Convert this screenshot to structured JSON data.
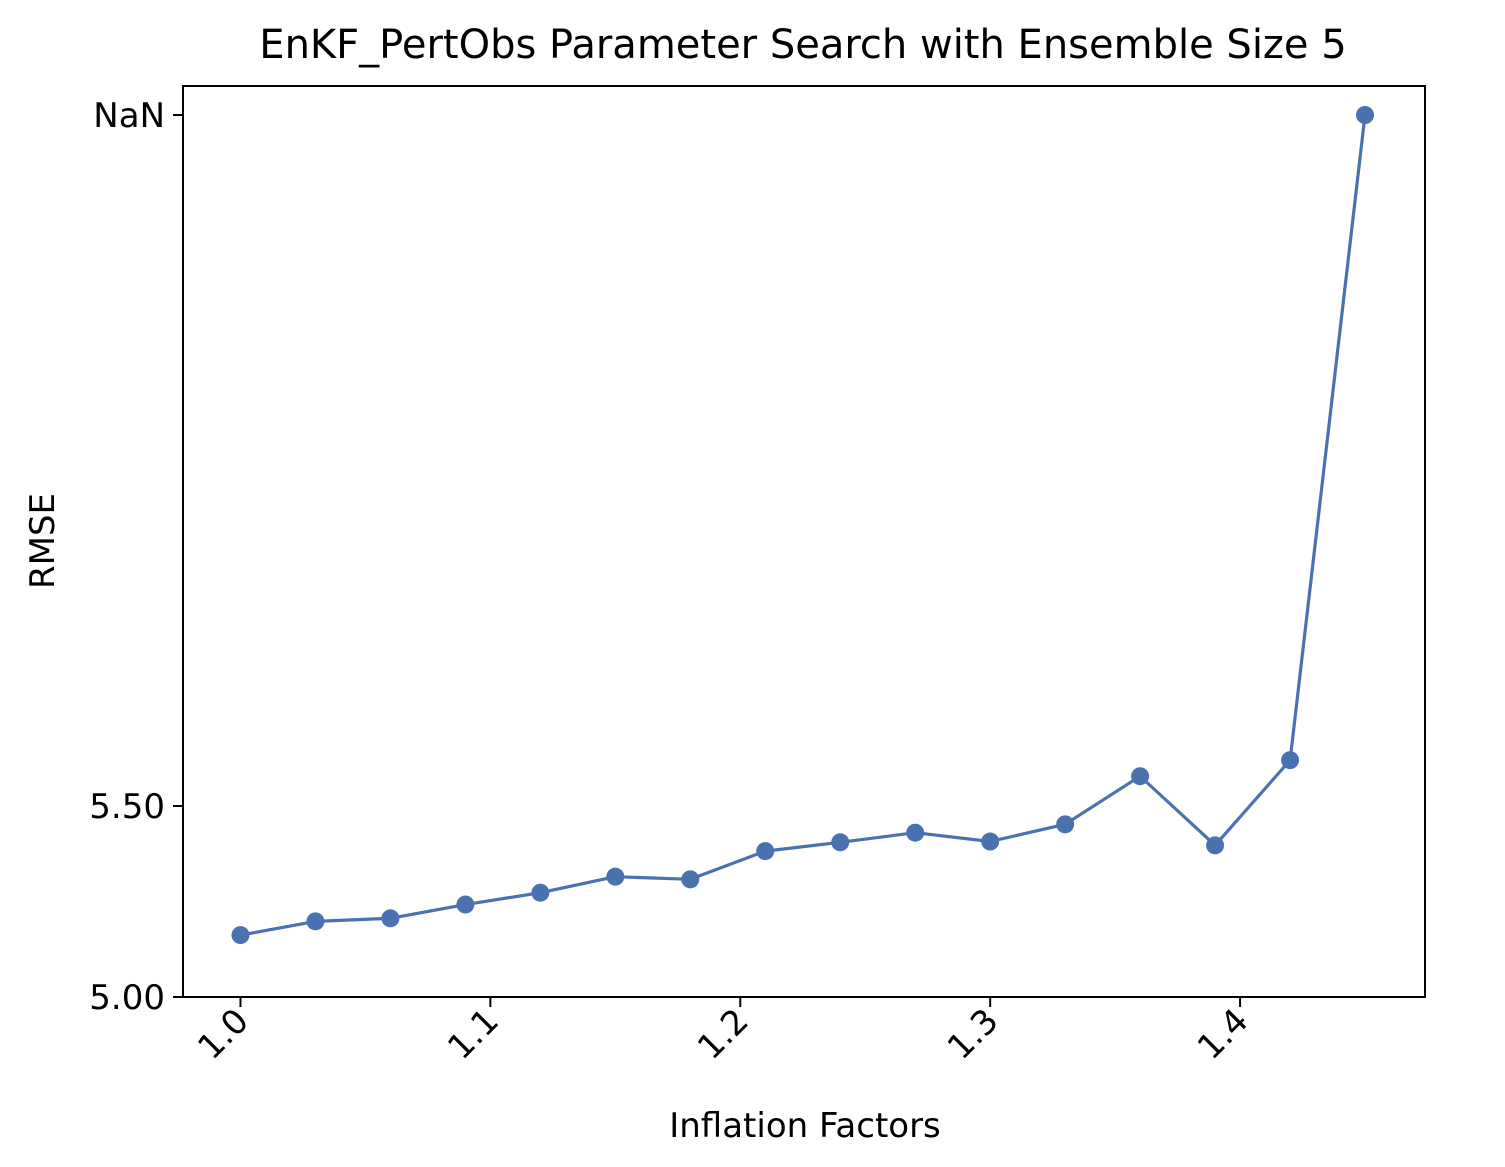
{
  "chart_data": {
    "type": "line",
    "title": "EnKF_PertObs Parameter Search with Ensemble Size 5",
    "xlabel": "Inflation Factors",
    "ylabel": "RMSE",
    "x_ticks": [
      "1.0",
      "1.1",
      "1.2",
      "1.3",
      "1.4"
    ],
    "y_ticks": [
      "5.00",
      "5.50",
      "NaN"
    ],
    "xlim": [
      0.977,
      1.474
    ],
    "y_scale": "broken: 5.00–5.50 linear, top tick NaN",
    "grid": false,
    "legend": "none",
    "series": [
      {
        "color": "#4a72b0",
        "marker": "circle",
        "x": [
          1.0,
          1.03,
          1.06,
          1.09,
          1.12,
          1.15,
          1.18,
          1.21,
          1.24,
          1.27,
          1.3,
          1.33,
          1.36,
          1.39,
          1.42,
          1.45
        ],
        "y": [
          5.162,
          5.198,
          5.206,
          5.242,
          5.273,
          5.315,
          5.308,
          5.382,
          5.405,
          5.43,
          5.407,
          5.452,
          5.578,
          5.397,
          5.62,
          "NaN"
        ]
      }
    ]
  }
}
